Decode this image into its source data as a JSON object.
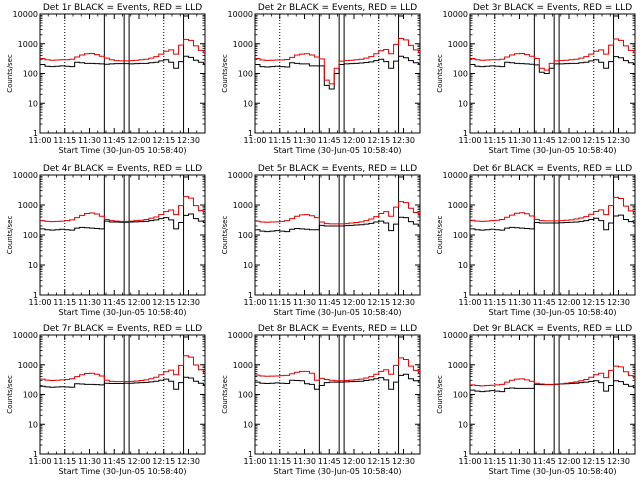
{
  "common": {
    "xlabel": "Start Time (30-Jun-05 10:58:40)",
    "ylabel": "Counts/sec",
    "x_ticks": [
      "11:00",
      "11:15",
      "11:30",
      "11:45",
      "12:00",
      "12:15",
      "12:30"
    ],
    "x_tick_minutes": [
      0,
      15,
      30,
      45,
      60,
      75,
      90
    ],
    "x_range_minutes": [
      0,
      100
    ],
    "y_scale": "log",
    "y_range": [
      1,
      10000
    ],
    "y_ticks": [
      "1",
      "10",
      "100",
      "1000",
      "10000"
    ],
    "y_tick_values": [
      1,
      10,
      100,
      1000,
      10000
    ],
    "dotted_lines_minutes": [
      15,
      75
    ],
    "solid_lines_minutes": [
      39,
      51,
      54,
      87
    ],
    "series_colors": {
      "events": "#000000",
      "lld": "#e00000"
    },
    "background": "#ffffff"
  },
  "chart_data": [
    {
      "type": "line",
      "title": "Det 1r BLACK = Events, RED = LLD",
      "x_minutes": [
        0,
        3,
        6,
        9,
        12,
        15,
        18,
        21,
        24,
        27,
        30,
        33,
        36,
        39,
        42,
        45,
        48,
        51,
        54,
        57,
        60,
        63,
        66,
        69,
        72,
        75,
        78,
        81,
        84,
        87,
        90,
        93,
        96,
        99
      ],
      "series": [
        {
          "name": "Events",
          "values": [
            200,
            175,
            170,
            175,
            180,
            175,
            170,
            240,
            230,
            220,
            220,
            215,
            210,
            205,
            210,
            215,
            215,
            215,
            210,
            215,
            220,
            220,
            230,
            240,
            265,
            290,
            240,
            150,
            250,
            380,
            350,
            280,
            240,
            210
          ]
        },
        {
          "name": "LLD",
          "values": [
            320,
            290,
            280,
            285,
            290,
            290,
            300,
            360,
            420,
            460,
            470,
            430,
            380,
            330,
            290,
            270,
            265,
            265,
            270,
            280,
            290,
            300,
            330,
            370,
            450,
            560,
            620,
            450,
            900,
            1400,
            1300,
            850,
            600,
            500
          ]
        }
      ]
    },
    {
      "type": "line",
      "title": "Det 2r BLACK = Events, RED = LLD",
      "x_minutes": [
        0,
        3,
        6,
        9,
        12,
        15,
        18,
        21,
        24,
        27,
        30,
        33,
        36,
        39,
        42,
        45,
        48,
        51,
        54,
        57,
        60,
        63,
        66,
        69,
        72,
        75,
        78,
        81,
        84,
        87,
        90,
        93,
        96,
        99
      ],
      "series": [
        {
          "name": "Events",
          "values": [
            200,
            170,
            165,
            170,
            175,
            170,
            165,
            230,
            220,
            210,
            210,
            180,
            180,
            180,
            40,
            30,
            100,
            200,
            210,
            215,
            220,
            225,
            235,
            245,
            270,
            300,
            250,
            150,
            260,
            380,
            340,
            270,
            230,
            210
          ]
        },
        {
          "name": "LLD",
          "values": [
            320,
            285,
            275,
            280,
            285,
            285,
            295,
            350,
            420,
            450,
            460,
            420,
            360,
            310,
            60,
            45,
            150,
            260,
            270,
            280,
            290,
            300,
            330,
            370,
            460,
            580,
            640,
            460,
            950,
            1500,
            1350,
            880,
            620,
            500
          ]
        }
      ]
    },
    {
      "type": "line",
      "title": "Det 3r BLACK = Events, RED = LLD",
      "x_minutes": [
        0,
        3,
        6,
        9,
        12,
        15,
        18,
        21,
        24,
        27,
        30,
        33,
        36,
        39,
        42,
        45,
        48,
        51,
        54,
        57,
        60,
        63,
        66,
        69,
        72,
        75,
        78,
        81,
        84,
        87,
        90,
        93,
        96,
        99
      ],
      "series": [
        {
          "name": "Events",
          "values": [
            200,
            175,
            170,
            175,
            180,
            175,
            170,
            240,
            230,
            220,
            215,
            210,
            205,
            195,
            110,
            100,
            150,
            210,
            210,
            215,
            220,
            220,
            230,
            240,
            265,
            290,
            240,
            150,
            250,
            370,
            340,
            270,
            230,
            210
          ]
        },
        {
          "name": "LLD",
          "values": [
            320,
            290,
            280,
            285,
            290,
            290,
            300,
            360,
            420,
            460,
            470,
            430,
            380,
            320,
            150,
            130,
            220,
            265,
            270,
            280,
            290,
            300,
            330,
            370,
            450,
            560,
            620,
            450,
            900,
            1450,
            1300,
            850,
            600,
            500
          ]
        }
      ]
    },
    {
      "type": "line",
      "title": "Det 4r BLACK = Events, RED = LLD",
      "x_minutes": [
        0,
        3,
        6,
        9,
        12,
        15,
        18,
        21,
        24,
        27,
        30,
        33,
        36,
        39,
        42,
        45,
        48,
        51,
        54,
        57,
        60,
        63,
        66,
        69,
        72,
        75,
        78,
        81,
        84,
        87,
        90,
        93,
        96,
        99
      ],
      "series": [
        {
          "name": "Events",
          "values": [
            160,
            150,
            145,
            150,
            155,
            150,
            145,
            170,
            180,
            175,
            170,
            165,
            160,
            290,
            270,
            270,
            265,
            265,
            270,
            275,
            280,
            285,
            300,
            320,
            350,
            380,
            320,
            160,
            260,
            450,
            500,
            350,
            290,
            260
          ]
        },
        {
          "name": "LLD",
          "values": [
            300,
            285,
            280,
            285,
            290,
            300,
            320,
            380,
            450,
            520,
            540,
            500,
            420,
            330,
            300,
            290,
            285,
            285,
            290,
            300,
            310,
            330,
            360,
            400,
            480,
            600,
            680,
            480,
            950,
            1900,
            1700,
            950,
            650,
            520
          ]
        }
      ]
    },
    {
      "type": "line",
      "title": "Det 5r BLACK = Events, RED = LLD",
      "x_minutes": [
        0,
        3,
        6,
        9,
        12,
        15,
        18,
        21,
        24,
        27,
        30,
        33,
        36,
        39,
        42,
        45,
        48,
        51,
        54,
        57,
        60,
        63,
        66,
        69,
        72,
        75,
        78,
        81,
        84,
        87,
        90,
        93,
        96,
        99
      ],
      "series": [
        {
          "name": "Events",
          "values": [
            150,
            135,
            130,
            135,
            140,
            135,
            130,
            155,
            165,
            160,
            155,
            150,
            150,
            210,
            200,
            200,
            200,
            200,
            205,
            210,
            215,
            220,
            230,
            245,
            270,
            290,
            250,
            140,
            230,
            390,
            380,
            280,
            230,
            200
          ]
        },
        {
          "name": "LLD",
          "values": [
            290,
            270,
            265,
            270,
            275,
            285,
            300,
            350,
            420,
            470,
            480,
            440,
            380,
            270,
            240,
            235,
            235,
            235,
            240,
            250,
            260,
            275,
            300,
            340,
            410,
            520,
            600,
            420,
            850,
            1300,
            1200,
            780,
            560,
            460
          ]
        }
      ]
    },
    {
      "type": "line",
      "title": "Det 6r BLACK = Events, RED = LLD",
      "x_minutes": [
        0,
        3,
        6,
        9,
        12,
        15,
        18,
        21,
        24,
        27,
        30,
        33,
        36,
        39,
        42,
        45,
        48,
        51,
        54,
        57,
        60,
        63,
        66,
        69,
        72,
        75,
        78,
        81,
        84,
        87,
        90,
        93,
        96,
        99
      ],
      "series": [
        {
          "name": "Events",
          "values": [
            160,
            150,
            145,
            150,
            155,
            150,
            145,
            170,
            180,
            175,
            170,
            165,
            160,
            260,
            250,
            250,
            250,
            250,
            255,
            260,
            265,
            270,
            285,
            300,
            330,
            360,
            300,
            150,
            250,
            430,
            460,
            330,
            280,
            250
          ]
        },
        {
          "name": "LLD",
          "values": [
            310,
            290,
            285,
            290,
            300,
            310,
            330,
            390,
            460,
            530,
            550,
            510,
            430,
            330,
            300,
            295,
            295,
            295,
            300,
            310,
            320,
            340,
            370,
            410,
            490,
            610,
            690,
            480,
            950,
            1800,
            1650,
            920,
            640,
            510
          ]
        }
      ]
    },
    {
      "type": "line",
      "title": "Det 7r BLACK = Events, RED = LLD",
      "x_minutes": [
        0,
        3,
        6,
        9,
        12,
        15,
        18,
        21,
        24,
        27,
        30,
        33,
        36,
        39,
        42,
        45,
        48,
        51,
        54,
        57,
        60,
        63,
        66,
        69,
        72,
        75,
        78,
        81,
        84,
        87,
        90,
        93,
        96,
        99
      ],
      "series": [
        {
          "name": "Events",
          "values": [
            190,
            180,
            175,
            178,
            182,
            178,
            175,
            230,
            225,
            220,
            220,
            215,
            210,
            240,
            235,
            235,
            235,
            240,
            240,
            245,
            250,
            255,
            265,
            280,
            300,
            330,
            280,
            150,
            250,
            380,
            360,
            280,
            240,
            210
          ]
        },
        {
          "name": "LLD",
          "values": [
            330,
            305,
            295,
            300,
            310,
            320,
            340,
            400,
            460,
            510,
            520,
            480,
            420,
            300,
            275,
            270,
            270,
            270,
            275,
            285,
            295,
            310,
            340,
            380,
            460,
            580,
            660,
            460,
            950,
            2000,
            1800,
            980,
            680,
            520
          ]
        }
      ]
    },
    {
      "type": "line",
      "title": "Det 8r BLACK = Events, RED = LLD",
      "x_minutes": [
        0,
        3,
        6,
        9,
        12,
        15,
        18,
        21,
        24,
        27,
        30,
        33,
        36,
        39,
        42,
        45,
        48,
        51,
        54,
        57,
        60,
        63,
        66,
        69,
        72,
        75,
        78,
        81,
        84,
        87,
        90,
        93,
        96,
        99
      ],
      "series": [
        {
          "name": "Events",
          "values": [
            260,
            240,
            235,
            240,
            245,
            240,
            235,
            300,
            295,
            290,
            230,
            220,
            150,
            200,
            250,
            260,
            260,
            260,
            265,
            270,
            275,
            280,
            295,
            310,
            340,
            370,
            310,
            150,
            260,
            440,
            480,
            340,
            290,
            260
          ]
        },
        {
          "name": "LLD",
          "values": [
            450,
            420,
            410,
            415,
            420,
            430,
            440,
            500,
            560,
            600,
            600,
            520,
            300,
            350,
            320,
            300,
            290,
            290,
            295,
            305,
            315,
            330,
            360,
            400,
            480,
            600,
            680,
            480,
            950,
            1700,
            1500,
            900,
            650,
            520
          ]
        }
      ]
    },
    {
      "type": "line",
      "title": "Det 9r BLACK = Events, RED = LLD",
      "x_minutes": [
        0,
        3,
        6,
        9,
        12,
        15,
        18,
        21,
        24,
        27,
        30,
        33,
        36,
        39,
        42,
        45,
        48,
        51,
        54,
        57,
        60,
        63,
        66,
        69,
        72,
        75,
        78,
        81,
        84,
        87,
        90,
        93,
        96,
        99
      ],
      "series": [
        {
          "name": "Events",
          "values": [
            140,
            130,
            125,
            130,
            135,
            130,
            125,
            160,
            165,
            160,
            160,
            160,
            160,
            220,
            215,
            215,
            215,
            220,
            225,
            230,
            235,
            240,
            250,
            260,
            275,
            290,
            250,
            130,
            200,
            290,
            270,
            220,
            190,
            170
          ]
        },
        {
          "name": "LLD",
          "values": [
            210,
            200,
            195,
            200,
            205,
            210,
            220,
            260,
            300,
            330,
            335,
            310,
            280,
            240,
            225,
            220,
            220,
            225,
            230,
            240,
            250,
            265,
            290,
            320,
            380,
            460,
            520,
            370,
            650,
            900,
            850,
            580,
            430,
            360
          ]
        }
      ]
    }
  ]
}
